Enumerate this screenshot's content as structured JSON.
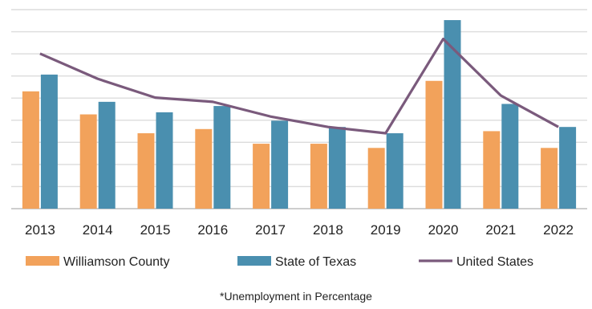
{
  "chart_data": {
    "type": "bar",
    "categories": [
      "2013",
      "2014",
      "2015",
      "2016",
      "2017",
      "2018",
      "2019",
      "2020",
      "2021",
      "2022"
    ],
    "series": [
      {
        "name": "Williamson County",
        "kind": "bar",
        "color": "#F2A25B",
        "values": [
          5.6,
          4.5,
          3.6,
          3.8,
          3.1,
          3.1,
          2.9,
          6.1,
          3.7,
          2.9
        ]
      },
      {
        "name": "State of Texas",
        "kind": "bar",
        "color": "#4A8FAF",
        "values": [
          6.4,
          5.1,
          4.6,
          4.9,
          4.2,
          3.9,
          3.6,
          9.0,
          5.0,
          3.9
        ]
      },
      {
        "name": "United States",
        "kind": "line",
        "color": "#7A5A7C",
        "values": [
          7.4,
          6.2,
          5.3,
          5.1,
          4.4,
          3.9,
          3.6,
          8.1,
          5.4,
          3.9
        ]
      }
    ],
    "ylim": [
      0,
      9.5
    ],
    "grid": true,
    "legend_position": "bottom",
    "footnote": "*Unemployment in Percentage"
  }
}
